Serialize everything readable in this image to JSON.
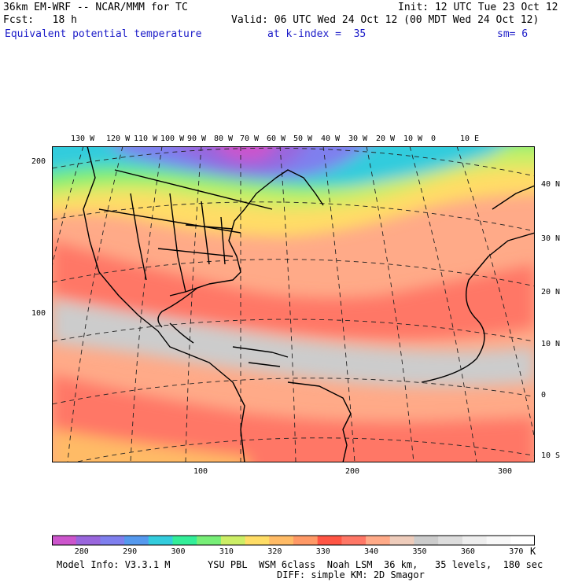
{
  "header": {
    "model_line": "36km EM-WRF -- NCAR/MMM for TC",
    "init": "Init: 12 UTC Tue 23 Oct 12",
    "forecast": "Fcst:   18 h",
    "valid": "Valid: 06 UTC Wed 24 Oct 12 (00 MDT Wed 24 Oct 12)",
    "field_title": "Equivalent potential temperature",
    "level": "at k-index =  35",
    "smoothing": "sm= 6"
  },
  "map": {
    "longitude_labels": [
      "130 W",
      "120 W",
      "110 W",
      "100 W",
      "90 W",
      "80 W",
      "70 W",
      "60 W",
      "50 W",
      "40 W",
      "30 W",
      "20 W",
      "10 W",
      "0",
      "10 E"
    ],
    "latitude_labels": [
      "40 N",
      "30 N",
      "20 N",
      "10 N",
      "0",
      "10 S"
    ],
    "grid_y_labels": [
      "200",
      "100"
    ],
    "grid_x_labels": [
      "100",
      "200",
      "300"
    ]
  },
  "legend": {
    "colors": [
      "#cc55cc",
      "#9966dd",
      "#7f7fee",
      "#5599ee",
      "#33ccdd",
      "#33ee99",
      "#77ee77",
      "#ccee66",
      "#ffdd66",
      "#ffbb66",
      "#ff9966",
      "#ff5544",
      "#ff7766",
      "#ffaa88",
      "#eeccbb",
      "#cccccc",
      "#dddddd",
      "#eeeeee",
      "#f8f8f8",
      "#ffffff"
    ],
    "tick_labels": [
      "280",
      "290",
      "300",
      "310",
      "320",
      "330",
      "340",
      "350",
      "360",
      "370"
    ],
    "unit": "K"
  },
  "footer": {
    "model_info": "Model Info: V3.3.1 M",
    "physics": "YSU PBL  WSM 6class  Noah LSM  36 km,   35 levels,  180 sec",
    "diffusion": "DIFF: simple KM: 2D Smagor"
  }
}
